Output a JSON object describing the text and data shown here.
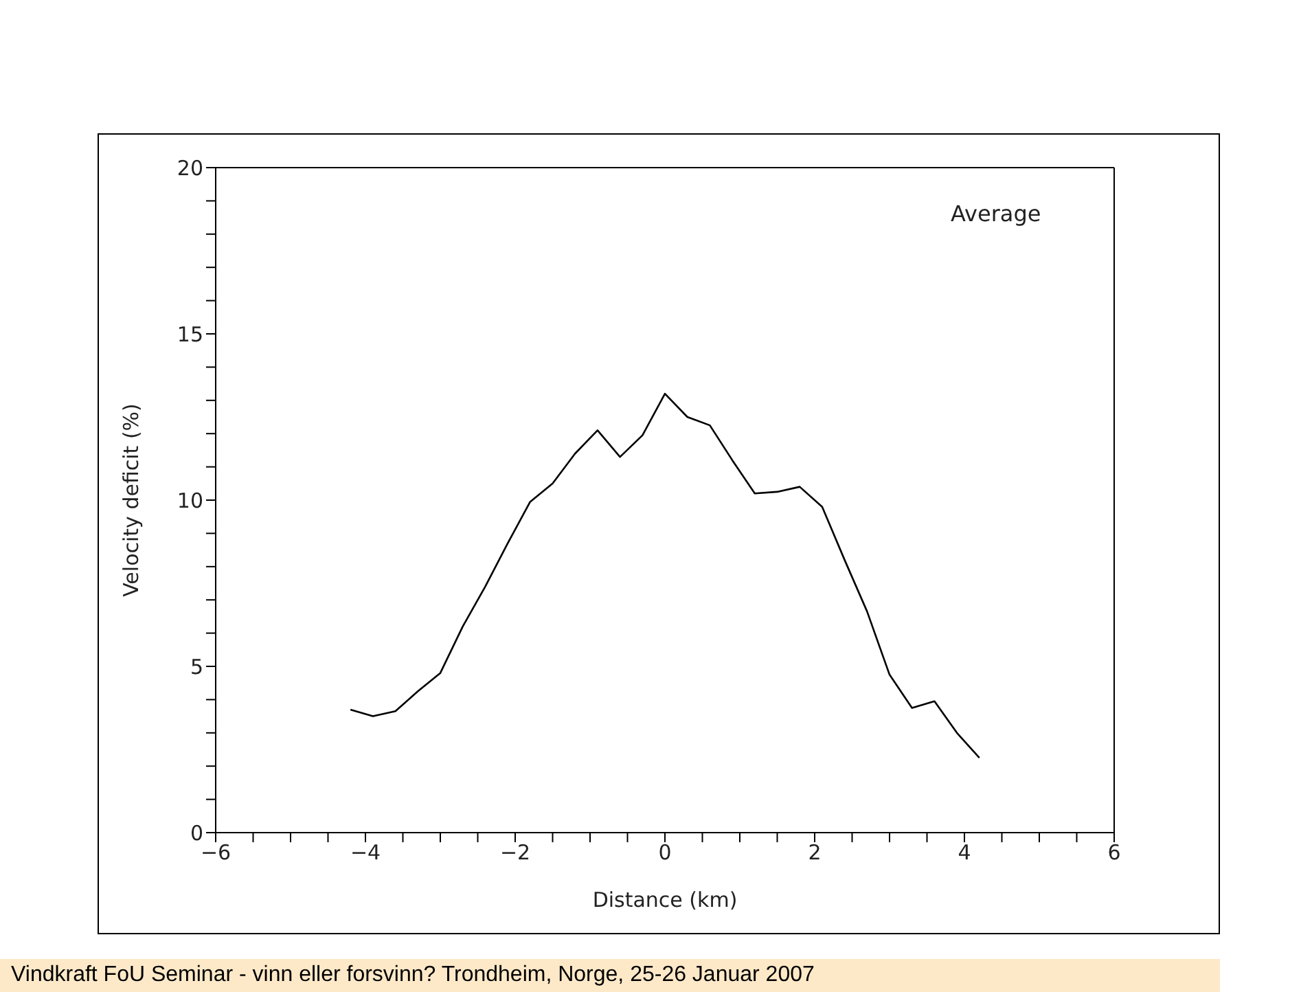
{
  "chart_data": {
    "type": "line",
    "xlabel": "Distance (km)",
    "ylabel": "Velocity deficit (%)",
    "annotations": [
      "Average",
      "Vindkraft FoU Seminar - vinn eller forsvinn? Trondheim, Norge, 25-26 Januar 2007"
    ],
    "x": [
      -4.2,
      -3.9,
      -3.6,
      -3.3,
      -3.0,
      -2.7,
      -2.4,
      -2.1,
      -1.8,
      -1.5,
      -1.2,
      -0.9,
      -0.6,
      -0.3,
      0,
      0.3,
      0.6,
      0.9,
      1.2,
      1.5,
      1.8,
      2.1,
      2.4,
      2.7,
      3.0,
      3.3,
      3.6,
      3.9,
      4.2
    ],
    "series": [
      {
        "color": "#000000",
        "values": [
          3.7,
          3.5,
          3.65,
          4.25,
          4.8,
          6.2,
          7.4,
          8.7,
          9.95,
          10.5,
          11.4,
          12.1,
          11.3,
          11.95,
          13.2,
          12.5,
          12.25,
          11.2,
          10.2,
          10.25,
          10.4,
          9.8,
          8.2,
          6.65,
          4.75,
          3.75,
          3.95,
          3.0,
          2.25
        ]
      }
    ],
    "xlim": [
      -6,
      6
    ],
    "xticks": [
      -6,
      {
        "value": -5.5,
        "label": null
      },
      {
        "value": -5,
        "label": null
      },
      {
        "value": -4.5,
        "label": null
      },
      -4,
      {
        "value": -3.5,
        "label": null
      },
      {
        "value": -3,
        "label": null
      },
      {
        "value": -2.5,
        "label": null
      },
      -2,
      {
        "value": -1.5,
        "label": null
      },
      {
        "value": -1,
        "label": null
      },
      {
        "value": -0.5,
        "label": null
      },
      0,
      {
        "value": 0.5,
        "label": null
      },
      {
        "value": 1,
        "label": null
      },
      {
        "value": 1.5,
        "label": null
      },
      2,
      {
        "value": 2.5,
        "label": null
      },
      {
        "value": 3,
        "label": null
      },
      {
        "value": 3.5,
        "label": null
      },
      4,
      {
        "value": 4.5,
        "label": null
      },
      {
        "value": 5,
        "label": null
      },
      {
        "value": 5.5,
        "label": null
      },
      6
    ],
    "ylim": [
      0,
      20
    ],
    "yticks": [
      0,
      {
        "value": 1,
        "label": null
      },
      {
        "value": 2,
        "label": null
      },
      {
        "value": 3,
        "label": null
      },
      {
        "value": 4,
        "label": null
      },
      5,
      {
        "value": 6,
        "label": null
      },
      {
        "value": 7,
        "label": null
      },
      {
        "value": 8,
        "label": null
      },
      {
        "value": 9,
        "label": null
      },
      10,
      {
        "value": 11,
        "label": null
      },
      {
        "value": 12,
        "label": null
      },
      {
        "value": 13,
        "label": null
      },
      {
        "value": 14,
        "label": null
      },
      15,
      {
        "value": 16,
        "label": null
      },
      {
        "value": 17,
        "label": null
      },
      {
        "value": 18,
        "label": null
      },
      {
        "value": 19,
        "label": null
      },
      20
    ],
    "grid": false,
    "legend": false,
    "marker": "none",
    "line_style": "solid"
  }
}
